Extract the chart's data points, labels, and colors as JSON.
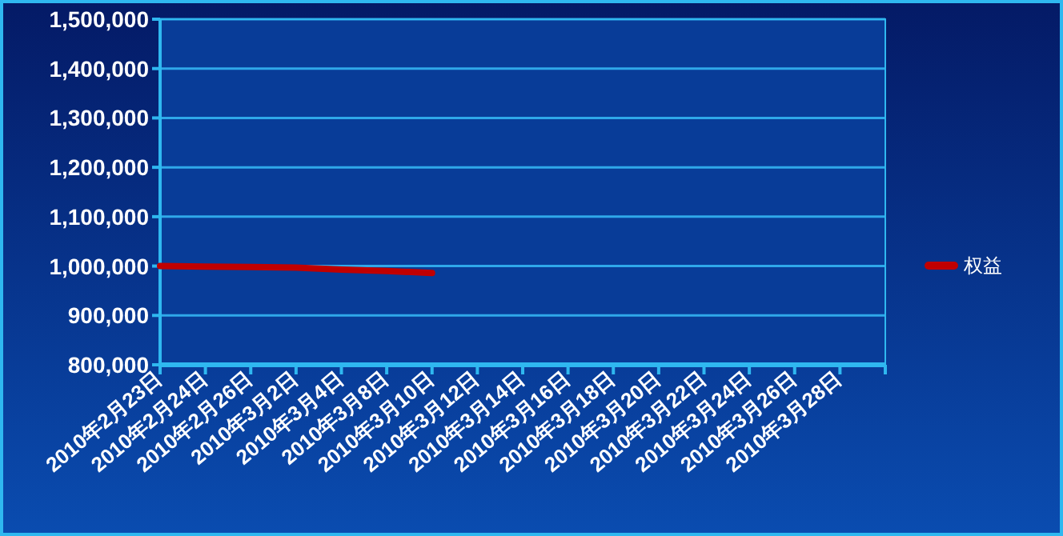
{
  "chart_data": {
    "type": "line",
    "categories": [
      "2010年2月23日",
      "2010年2月24日",
      "2010年2月26日",
      "2010年3月2日",
      "2010年3月4日",
      "2010年3月8日",
      "2010年3月10日",
      "2010年3月12日",
      "2010年3月14日",
      "2010年3月16日",
      "2010年3月18日",
      "2010年3月20日",
      "2010年3月22日",
      "2010年3月24日",
      "2010年3月26日",
      "2010年3月28日"
    ],
    "series": [
      {
        "name": "权益",
        "color": "#c00000",
        "values": [
          1000000,
          999000,
          998000,
          997000,
          993000,
          990000,
          986000,
          null,
          null,
          null,
          null,
          null,
          null,
          null,
          null,
          null
        ]
      }
    ],
    "ylim": [
      800000,
      1500000
    ],
    "yticks": [
      {
        "value": 800000,
        "label": "800,000"
      },
      {
        "value": 900000,
        "label": "900,000"
      },
      {
        "value": 1000000,
        "label": "1,000,000"
      },
      {
        "value": 1100000,
        "label": "1,100,000"
      },
      {
        "value": 1200000,
        "label": "1,200,000"
      },
      {
        "value": 1300000,
        "label": "1,300,000"
      },
      {
        "value": 1400000,
        "label": "1,400,000"
      },
      {
        "value": 1500000,
        "label": "1,500,000"
      }
    ],
    "grid": "y",
    "legend": "right",
    "marker": "none",
    "line_style": "solid"
  }
}
